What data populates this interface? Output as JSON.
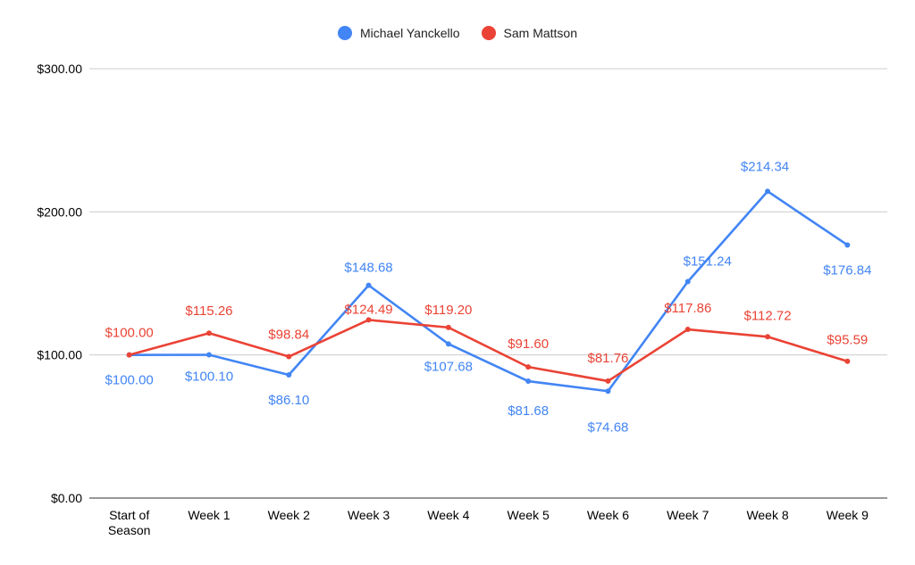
{
  "chart_data": {
    "type": "line",
    "categories": [
      "Start of Season",
      "Week 1",
      "Week 2",
      "Week 3",
      "Week 4",
      "Week 5",
      "Week 6",
      "Week 7",
      "Week 8",
      "Week 9"
    ],
    "category_lines": [
      [
        "Start of",
        "Season"
      ],
      [
        "Week 1"
      ],
      [
        "Week 2"
      ],
      [
        "Week 3"
      ],
      [
        "Week 4"
      ],
      [
        "Week 5"
      ],
      [
        "Week 6"
      ],
      [
        "Week 7"
      ],
      [
        "Week 8"
      ],
      [
        "Week 9"
      ]
    ],
    "series": [
      {
        "name": "Michael Yanckello",
        "color": "#4285F4",
        "values": [
          100.0,
          100.1,
          86.1,
          148.68,
          107.68,
          81.68,
          74.68,
          151.24,
          214.34,
          176.84
        ],
        "labels": [
          "$100.00",
          "$100.10",
          "$86.10",
          "$148.68",
          "$107.68",
          "$81.68",
          "$74.68",
          "$151.24",
          "$214.34",
          "$176.84"
        ]
      },
      {
        "name": "Sam Mattson",
        "color": "#EA4335",
        "values": [
          100.0,
          115.26,
          98.84,
          124.49,
          119.2,
          91.6,
          81.76,
          117.86,
          112.72,
          95.59
        ],
        "labels": [
          "$100.00",
          "$115.26",
          "$98.84",
          "$124.49",
          "$119.20",
          "$91.60",
          "$81.76",
          "$117.86",
          "$112.72",
          "$95.59"
        ]
      }
    ],
    "y_ticks": [
      0,
      100,
      200,
      300
    ],
    "y_tick_labels": [
      "$0.00",
      "$100.00",
      "$200.00",
      "$300.00"
    ],
    "ylim": [
      0,
      300
    ],
    "grid": true,
    "legend_position": "top-center"
  }
}
